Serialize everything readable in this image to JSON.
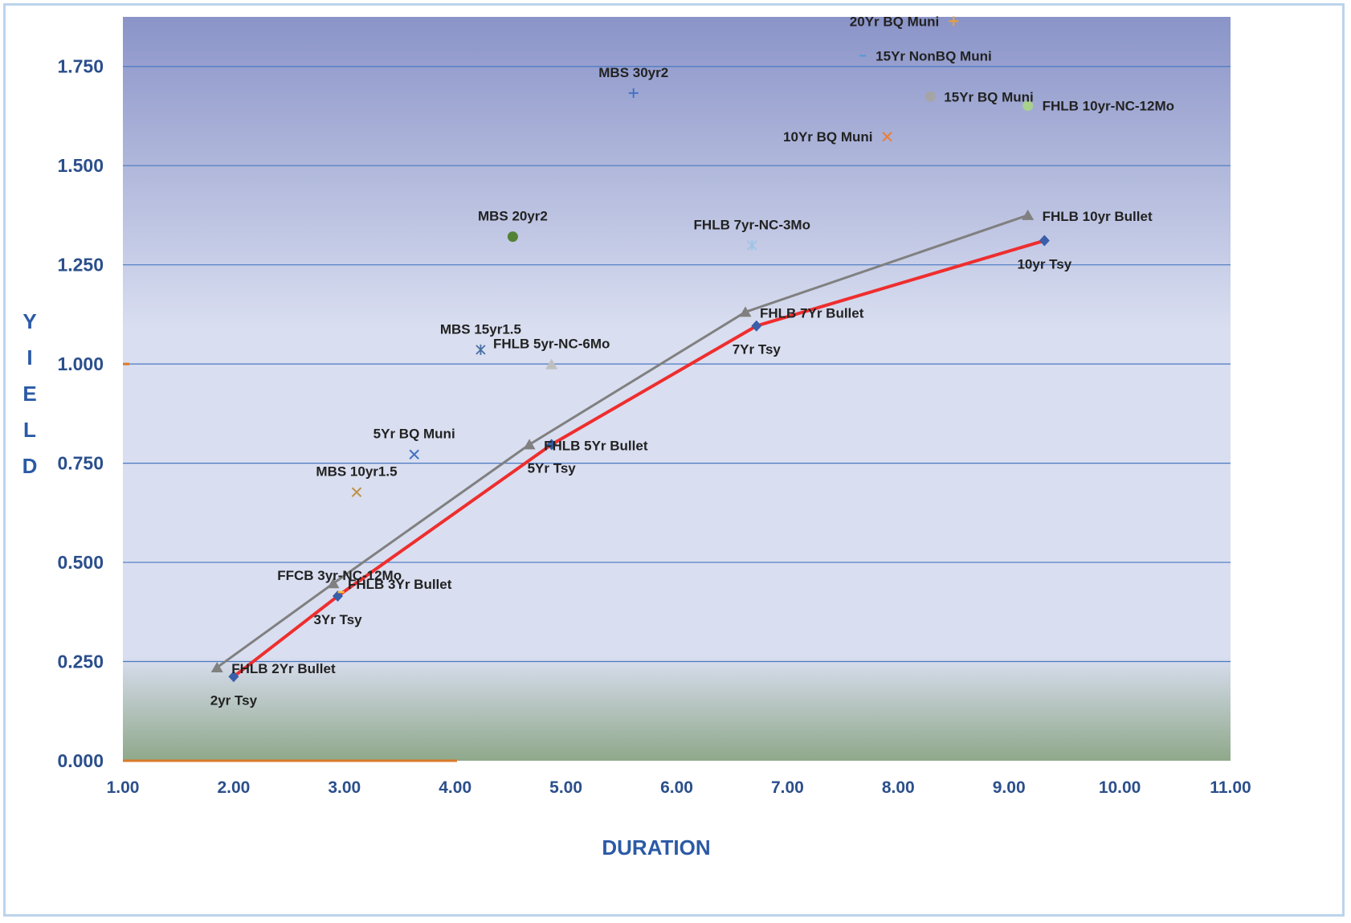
{
  "chart_data": {
    "type": "scatter",
    "xlabel": "DURATION",
    "ylabel": "YIELD",
    "xlim": [
      1.0,
      11.0
    ],
    "ylim": [
      0.0,
      1.875
    ],
    "x_ticks": [
      1,
      2,
      3,
      4,
      5,
      6,
      7,
      8,
      9,
      10,
      11
    ],
    "x_tick_labels": [
      "1.00",
      "2.00",
      "3.00",
      "4.00",
      "5.00",
      "6.00",
      "7.00",
      "8.00",
      "9.00",
      "10.00",
      "11.00"
    ],
    "y_ticks": [
      0,
      0.25,
      0.5,
      0.75,
      1.0,
      1.25,
      1.5,
      1.75
    ],
    "y_tick_labels": [
      "0.000",
      "0.250",
      "0.500",
      "0.750",
      "1.000",
      "1.250",
      "1.500",
      "1.750"
    ],
    "grid": "horizontal",
    "lines": [
      {
        "color": "#808080",
        "marker": "triangle",
        "points": [
          {
            "x": 1.85,
            "y": 0.235,
            "label": "FHLB 2Yr Bullet"
          },
          {
            "x": 2.9,
            "y": 0.447,
            "label": "FHLB 3Yr Bullet"
          },
          {
            "x": 4.67,
            "y": 0.797,
            "label": "FHLB 5Yr Bullet"
          },
          {
            "x": 6.62,
            "y": 1.131,
            "label": "FHLB 7Yr Bullet"
          },
          {
            "x": 9.17,
            "y": 1.375,
            "label": "FHLB 10yr Bullet"
          }
        ]
      },
      {
        "color": "#ee2e2e",
        "marker": "diamond",
        "marker_color": "#3a5ea8",
        "points": [
          {
            "x": 2.0,
            "y": 0.212,
            "label": "2yr Tsy"
          },
          {
            "x": 2.94,
            "y": 0.415,
            "label": "3Yr Tsy"
          },
          {
            "x": 4.87,
            "y": 0.797,
            "label": "5Yr Tsy"
          },
          {
            "x": 6.72,
            "y": 1.096,
            "label": "7Yr Tsy"
          },
          {
            "x": 9.32,
            "y": 1.311,
            "label": "10yr Tsy"
          }
        ]
      }
    ],
    "points": [
      {
        "label": "20Yr BQ Muni",
        "x": 8.5,
        "y": 1.864,
        "marker": "plus",
        "color": "#f0a030"
      },
      {
        "label": "15Yr NonBQ Muni",
        "x": 7.68,
        "y": 1.777,
        "marker": "dash",
        "color": "#5b9bd5"
      },
      {
        "label": "MBS 30yr2",
        "x": 5.61,
        "y": 1.683,
        "marker": "plus",
        "color": "#4472c4"
      },
      {
        "label": "15Yr BQ Muni",
        "x": 8.29,
        "y": 1.674,
        "marker": "circle",
        "color": "#a5a5a5"
      },
      {
        "label": "FHLB 10yr-NC-12Mo",
        "x": 9.17,
        "y": 1.651,
        "marker": "circle",
        "color": "#a9d18e"
      },
      {
        "label": "10Yr BQ Muni",
        "x": 7.9,
        "y": 1.573,
        "marker": "x",
        "color": "#ed7d31"
      },
      {
        "label": "MBS 20yr2",
        "x": 4.52,
        "y": 1.321,
        "marker": "circle",
        "color": "#548235"
      },
      {
        "label": "FHLB 7yr-NC-3Mo",
        "x": 6.68,
        "y": 1.299,
        "marker": "star",
        "color": "#9dc3e6"
      },
      {
        "label": "MBS 15yr1.5",
        "x": 4.23,
        "y": 1.036,
        "marker": "star",
        "color": "#4a6fa5"
      },
      {
        "label": "FHLB 5yr-NC-6Mo",
        "x": 4.87,
        "y": 0.999,
        "marker": "triangle",
        "color": "#bfbfbf"
      },
      {
        "label": "5Yr BQ Muni",
        "x": 3.63,
        "y": 0.772,
        "marker": "x",
        "color": "#4472c4"
      },
      {
        "label": "MBS 10yr1.5",
        "x": 3.11,
        "y": 0.677,
        "marker": "x",
        "color": "#c09040"
      },
      {
        "label": "FFCB 3yr-NC-12Mo",
        "x": 2.97,
        "y": 0.425,
        "marker": "dash",
        "color": "#f0c040"
      }
    ],
    "background_colors": {
      "top": "#8a94c8",
      "middle": "#d9def0",
      "bottom": "#8fa88a"
    }
  }
}
